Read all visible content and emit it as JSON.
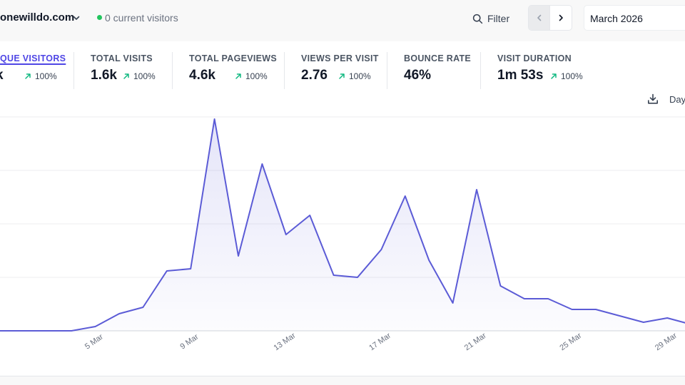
{
  "header": {
    "site_name": "onewilldo.com",
    "current_visitors": "0 current visitors",
    "filter_label": "Filter",
    "period_label": "March 2026",
    "interval_label": "Day"
  },
  "stats": [
    {
      "id": "unique",
      "label": "QUE VISITORS",
      "value": "k",
      "change": "100%",
      "active": true
    },
    {
      "id": "visits",
      "label": "TOTAL VISITS",
      "value": "1.6k",
      "change": "100%"
    },
    {
      "id": "pageviews",
      "label": "TOTAL PAGEVIEWS",
      "value": "4.6k",
      "change": "100%"
    },
    {
      "id": "views_per_visit",
      "label": "VIEWS PER VISIT",
      "value": "2.76",
      "change": "100%"
    },
    {
      "id": "bounce",
      "label": "BOUNCE RATE",
      "value": "46%"
    },
    {
      "id": "duration",
      "label": "VISIT DURATION",
      "value": "1m 53s",
      "change": "100%"
    }
  ],
  "colors": {
    "accent": "#5b5bd6",
    "positive": "#10b981",
    "live": "#22c55e"
  },
  "icons": [
    "chevron-down-icon",
    "search-icon",
    "chevron-left-icon",
    "chevron-right-icon",
    "arrow-up-right-icon",
    "download-icon"
  ],
  "chart_data": {
    "type": "area",
    "x": [
      "1 Mar",
      "2 Mar",
      "3 Mar",
      "4 Mar",
      "5 Mar",
      "6 Mar",
      "7 Mar",
      "8 Mar",
      "9 Mar",
      "10 Mar",
      "11 Mar",
      "12 Mar",
      "13 Mar",
      "14 Mar",
      "15 Mar",
      "16 Mar",
      "17 Mar",
      "18 Mar",
      "19 Mar",
      "20 Mar",
      "21 Mar",
      "22 Mar",
      "23 Mar",
      "24 Mar",
      "25 Mar",
      "26 Mar",
      "27 Mar",
      "28 Mar",
      "29 Mar",
      "30 Mar"
    ],
    "tick_labels": [
      "5 Mar",
      "9 Mar",
      "13 Mar",
      "17 Mar",
      "21 Mar",
      "25 Mar",
      "29 Mar"
    ],
    "series": [
      {
        "values": [
          0,
          0,
          0,
          0,
          2,
          8,
          11,
          28,
          29,
          99,
          35,
          78,
          45,
          54,
          26,
          25,
          38,
          63,
          33,
          13,
          66,
          21,
          15,
          15,
          10,
          10,
          7,
          4,
          6,
          3
        ]
      }
    ],
    "ylim": [
      0,
      100
    ],
    "grid": true,
    "legend": "none"
  }
}
